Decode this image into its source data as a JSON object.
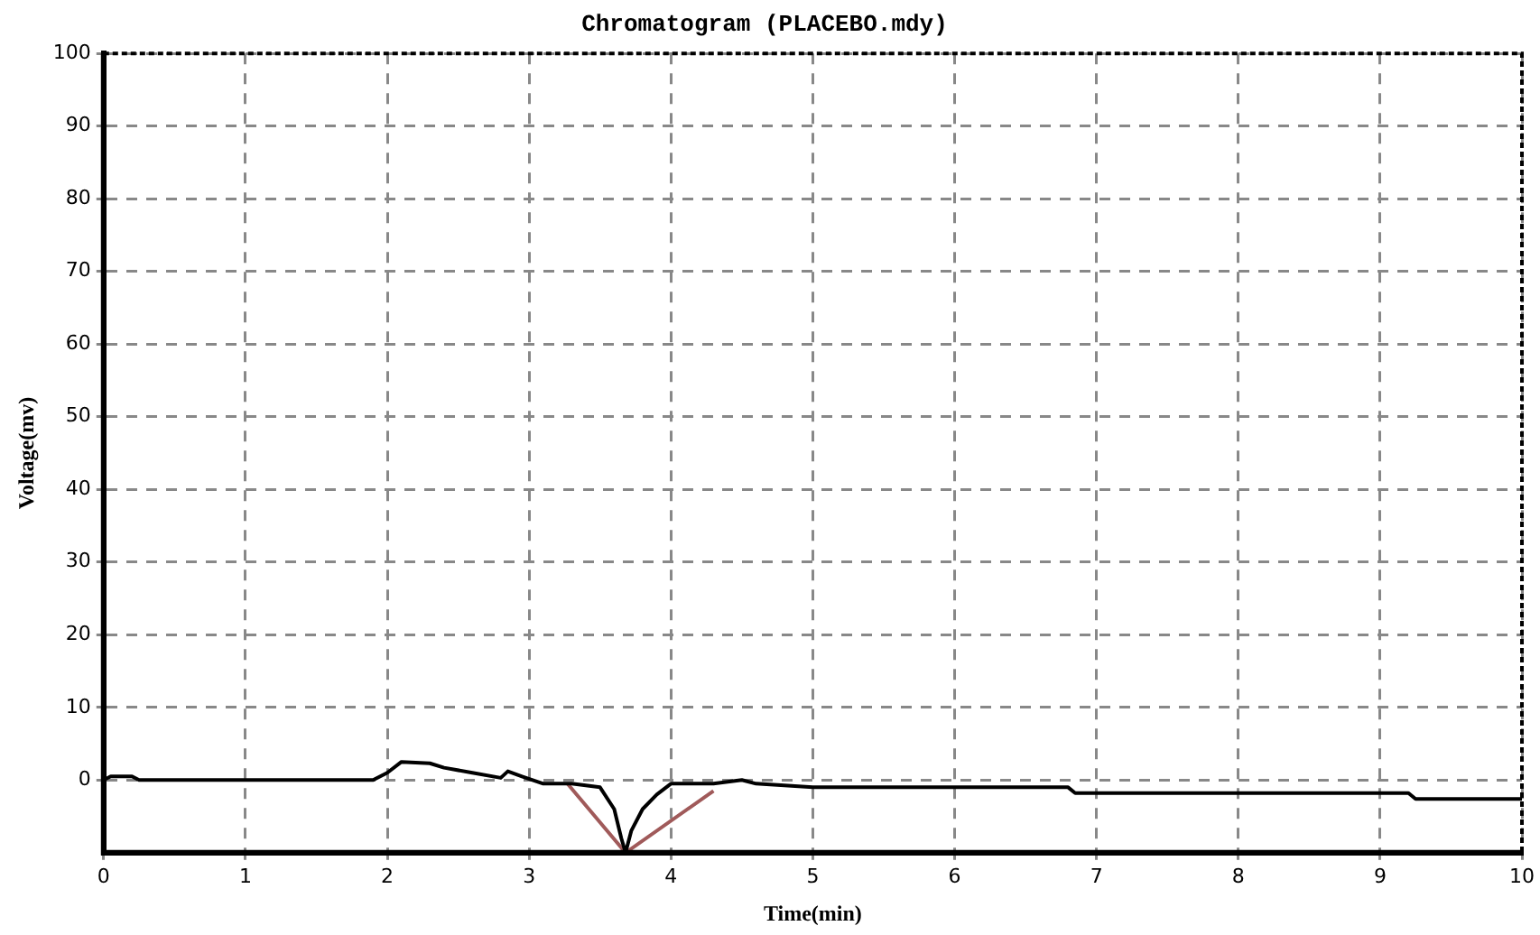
{
  "chart_data": {
    "type": "line",
    "title": "Chromatogram (PLACEBO.mdy)",
    "xlabel": "Time(min)",
    "ylabel": "Voltage(mv)",
    "xlim": [
      0,
      10
    ],
    "xticks": [
      0,
      1,
      2,
      3,
      4,
      5,
      6,
      7,
      8,
      9,
      10
    ],
    "ylim": [
      -10,
      100
    ],
    "yticks": [
      0,
      10,
      20,
      30,
      40,
      50,
      60,
      70,
      80,
      90,
      100
    ],
    "grid": true,
    "legend": false,
    "marker": "none",
    "line_style": "solid",
    "series": [
      {
        "color": "#000000",
        "x": [
          0,
          0.05,
          0.2,
          0.25,
          1.9,
          2,
          2.1,
          2.3,
          2.4,
          2.6,
          2.8,
          2.85,
          2.95,
          3.1,
          3.3,
          3.5,
          3.6,
          3.65,
          3.68,
          3.72,
          3.8,
          3.9,
          4,
          4.3,
          4.5,
          4.6,
          5,
          6.8,
          6.85,
          9.2,
          9.25,
          10
        ],
        "values": [
          0,
          0.5,
          0.5,
          0,
          0,
          1,
          2.5,
          2.3,
          1.7,
          1,
          0.3,
          1.2,
          0.5,
          -0.5,
          -0.5,
          -1,
          -4,
          -8,
          -10,
          -7,
          -4,
          -2,
          -0.5,
          -0.5,
          0,
          -0.5,
          -1,
          -1,
          -1.8,
          -1.8,
          -2.6,
          -2.6
        ]
      },
      {
        "color": "#a05a5a",
        "x": [
          3.27,
          3.68,
          4.3
        ],
        "values": [
          -0.5,
          -10,
          -1.5
        ]
      }
    ]
  }
}
